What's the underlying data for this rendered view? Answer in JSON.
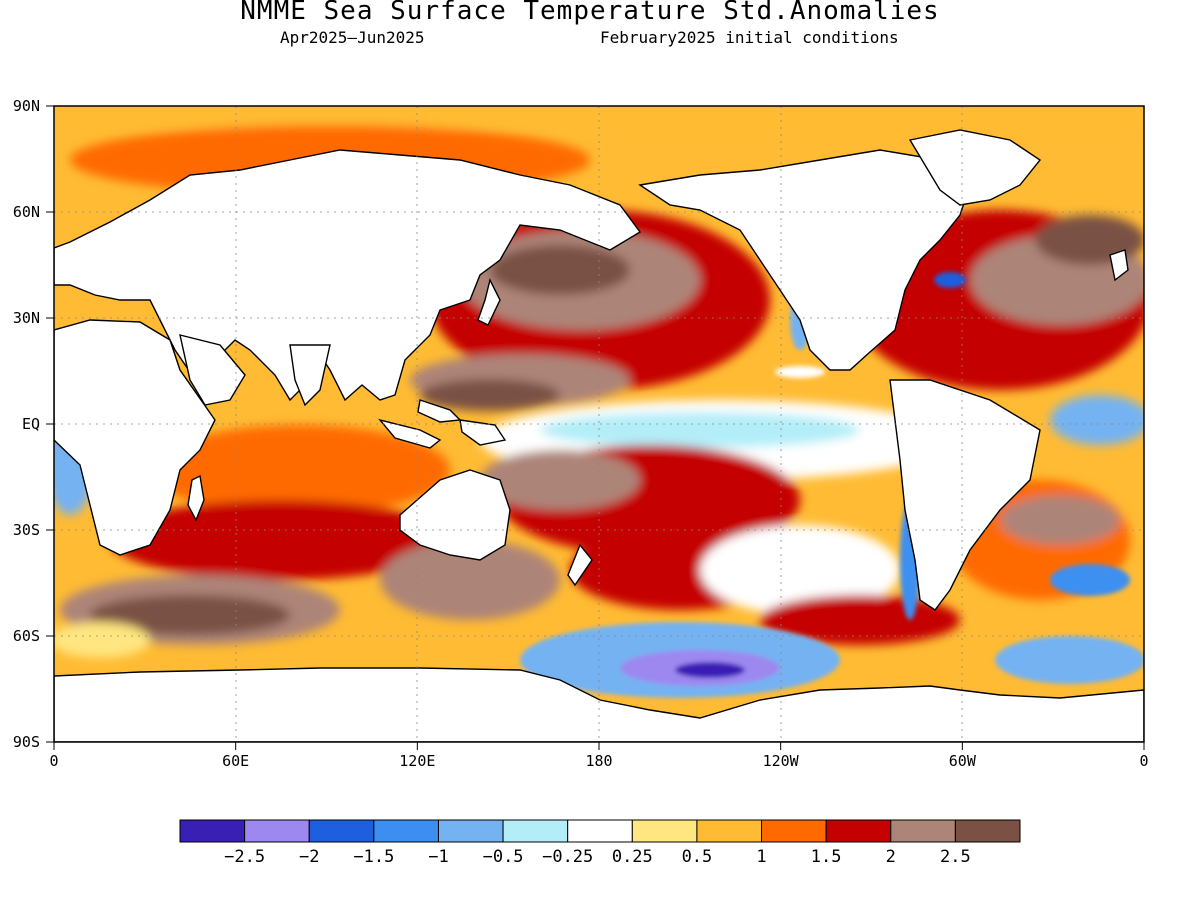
{
  "title": "NMME Sea Surface Temperature Std.Anomalies",
  "subtitle_left": "Apr2025–Jun2025",
  "subtitle_right": "February2025 initial conditions",
  "axes": {
    "lat_ticks": [
      "90N",
      "60N",
      "30N",
      "EQ",
      "30S",
      "60S",
      "90S"
    ],
    "lon_ticks": [
      "0",
      "60E",
      "120E",
      "180",
      "120W",
      "60W",
      "0"
    ]
  },
  "colorbar": {
    "labels": [
      "−2.5",
      "−2",
      "−1.5",
      "−1",
      "−0.5",
      "−0.25",
      "0.25",
      "0.5",
      "1",
      "1.5",
      "2",
      "2.5"
    ],
    "colors": [
      "#3a1fb5",
      "#9d88f0",
      "#1e5fde",
      "#3c8ff0",
      "#74b2f2",
      "#b3eef8",
      "#ffffff",
      "#ffe680",
      "#ffbb33",
      "#ff6a00",
      "#c40000",
      "#ad8478",
      "#7a5144"
    ]
  },
  "land_color": "#ffffff",
  "grid": "dotted"
}
